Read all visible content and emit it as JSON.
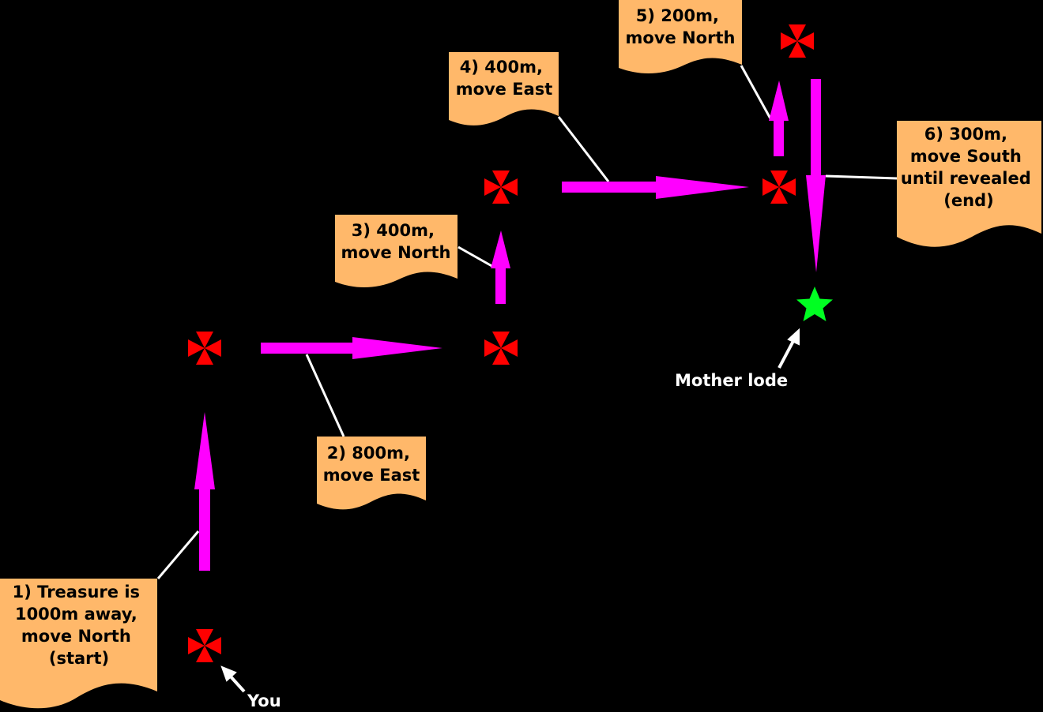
{
  "colors": {
    "background": "#000000",
    "note_fill": "#ffb86a",
    "arrow": "#ff00ff",
    "marker": "#ff0000",
    "treasure": "#00ff22",
    "leader_line": "#ffffff"
  },
  "notes": [
    {
      "id": "1",
      "lines": [
        "1) Treasure is",
        "1000m away,",
        "move North",
        "(start)"
      ]
    },
    {
      "id": "2",
      "lines": [
        "2) 800m,",
        "move East"
      ]
    },
    {
      "id": "3",
      "lines": [
        "3) 400m,",
        "move North"
      ]
    },
    {
      "id": "4",
      "lines": [
        "4) 400m,",
        "move East"
      ]
    },
    {
      "id": "5",
      "lines": [
        "5) 200m,",
        "move North"
      ]
    },
    {
      "id": "6",
      "lines": [
        "6) 300m,",
        "move South",
        "until revealed",
        "(end)"
      ]
    }
  ],
  "labels": {
    "you": "You",
    "mother_lode": "Mother lode"
  },
  "icons": {
    "waypoint": "maltese-cross-icon",
    "treasure": "star-icon"
  }
}
